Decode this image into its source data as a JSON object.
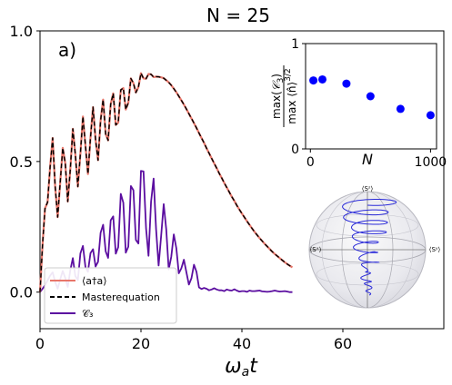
{
  "title": "N = 25",
  "panel_label": "a)",
  "colors": {
    "mean_n": "#e8766a",
    "master": "#000000",
    "c3": "#5b0ea0",
    "inset_points": "#0000ff",
    "trajectory": "#2a2ad8"
  },
  "chart_data": [
    {
      "type": "line",
      "xlabel": "ω_a t",
      "ylabel": "",
      "xlim": [
        0,
        80
      ],
      "ylim": [
        -0.14,
        1.0
      ],
      "x_ticks": [
        "0",
        "20",
        "40",
        "60"
      ],
      "y_ticks": [
        "0.0",
        "0.5",
        "1.0"
      ],
      "legend": {
        "placement": "bottom-left",
        "entries": [
          "⟨a†a⟩",
          "Masterequation",
          "𝒞₃"
        ]
      },
      "series": [
        {
          "name": "⟨a†a⟩",
          "style": "solid",
          "x": [
            0.0,
            0.5,
            1.0,
            1.5,
            2.0,
            2.5,
            3.0,
            3.5,
            4.0,
            4.5,
            5.0,
            5.5,
            6.0,
            6.5,
            7.0,
            7.5,
            8.0,
            8.5,
            9.0,
            9.5,
            10.0,
            10.5,
            11.0,
            11.5,
            12.0,
            12.5,
            13.0,
            13.5,
            14.0,
            14.5,
            15.0,
            15.5,
            16.0,
            16.5,
            17.0,
            17.5,
            18.0,
            18.5,
            19.0,
            19.5,
            20.0,
            20.5,
            21.0,
            21.5,
            22.0,
            22.5,
            23.0,
            23.5,
            24.0,
            24.5,
            25.0,
            25.5,
            26.0,
            26.5,
            27.0,
            27.5,
            28.0,
            28.5,
            29.0,
            29.5,
            30.0,
            30.5,
            31.0,
            31.5,
            32.0,
            32.5,
            33.0,
            33.5,
            34.0,
            34.5,
            35.0,
            35.5,
            36.0,
            36.5,
            37.0,
            37.5,
            38.0,
            38.5,
            39.0,
            39.5,
            40.0,
            40.5,
            41.0,
            41.5,
            42.0,
            42.5,
            43.0,
            43.5,
            44.0,
            44.5,
            45.0,
            45.5,
            46.0,
            46.5,
            47.0,
            47.5,
            48.0,
            48.5,
            49.0,
            49.5,
            50.0
          ],
          "y": [
            0.0,
            0.183,
            0.32,
            0.344,
            0.479,
            0.59,
            0.407,
            0.287,
            0.42,
            0.552,
            0.493,
            0.347,
            0.47,
            0.625,
            0.528,
            0.404,
            0.53,
            0.672,
            0.559,
            0.452,
            0.592,
            0.708,
            0.583,
            0.505,
            0.657,
            0.737,
            0.605,
            0.581,
            0.719,
            0.761,
            0.64,
            0.649,
            0.774,
            0.781,
            0.699,
            0.725,
            0.818,
            0.8,
            0.764,
            0.785,
            0.838,
            0.818,
            0.817,
            0.835,
            0.834,
            0.823,
            0.825,
            0.824,
            0.822,
            0.819,
            0.811,
            0.803,
            0.792,
            0.779,
            0.765,
            0.75,
            0.734,
            0.718,
            0.701,
            0.683,
            0.665,
            0.647,
            0.628,
            0.609,
            0.59,
            0.571,
            0.551,
            0.532,
            0.512,
            0.493,
            0.474,
            0.455,
            0.437,
            0.418,
            0.4,
            0.383,
            0.365,
            0.349,
            0.332,
            0.316,
            0.301,
            0.286,
            0.272,
            0.258,
            0.244,
            0.231,
            0.219,
            0.207,
            0.196,
            0.185,
            0.175,
            0.165,
            0.155,
            0.146,
            0.138,
            0.13,
            0.122,
            0.114,
            0.107,
            0.101,
            0.095
          ]
        },
        {
          "name": "Masterequation",
          "style": "dashed",
          "x": [
            0.0,
            0.5,
            1.0,
            1.5,
            2.0,
            2.5,
            3.0,
            3.5,
            4.0,
            4.5,
            5.0,
            5.5,
            6.0,
            6.5,
            7.0,
            7.5,
            8.0,
            8.5,
            9.0,
            9.5,
            10.0,
            10.5,
            11.0,
            11.5,
            12.0,
            12.5,
            13.0,
            13.5,
            14.0,
            14.5,
            15.0,
            15.5,
            16.0,
            16.5,
            17.0,
            17.5,
            18.0,
            18.5,
            19.0,
            19.5,
            20.0,
            20.5,
            21.0,
            21.5,
            22.0,
            22.5,
            23.0,
            23.5,
            24.0,
            24.5,
            25.0,
            25.5,
            26.0,
            26.5,
            27.0,
            27.5,
            28.0,
            28.5,
            29.0,
            29.5,
            30.0,
            30.5,
            31.0,
            31.5,
            32.0,
            32.5,
            33.0,
            33.5,
            34.0,
            34.5,
            35.0,
            35.5,
            36.0,
            36.5,
            37.0,
            37.5,
            38.0,
            38.5,
            39.0,
            39.5,
            40.0,
            40.5,
            41.0,
            41.5,
            42.0,
            42.5,
            43.0,
            43.5,
            44.0,
            44.5,
            45.0,
            45.5,
            46.0,
            46.5,
            47.0,
            47.5,
            48.0,
            48.5,
            49.0,
            49.5,
            50.0
          ],
          "y": [
            0.0,
            0.183,
            0.32,
            0.344,
            0.479,
            0.59,
            0.407,
            0.287,
            0.42,
            0.552,
            0.493,
            0.347,
            0.47,
            0.625,
            0.528,
            0.404,
            0.53,
            0.672,
            0.559,
            0.452,
            0.592,
            0.708,
            0.583,
            0.505,
            0.657,
            0.737,
            0.605,
            0.581,
            0.719,
            0.761,
            0.64,
            0.649,
            0.774,
            0.781,
            0.699,
            0.725,
            0.818,
            0.8,
            0.764,
            0.785,
            0.838,
            0.818,
            0.817,
            0.835,
            0.834,
            0.823,
            0.825,
            0.824,
            0.822,
            0.819,
            0.811,
            0.803,
            0.792,
            0.779,
            0.765,
            0.75,
            0.734,
            0.718,
            0.701,
            0.683,
            0.665,
            0.647,
            0.628,
            0.609,
            0.59,
            0.571,
            0.551,
            0.532,
            0.512,
            0.493,
            0.474,
            0.455,
            0.437,
            0.418,
            0.4,
            0.383,
            0.365,
            0.349,
            0.332,
            0.316,
            0.301,
            0.286,
            0.272,
            0.258,
            0.244,
            0.231,
            0.219,
            0.207,
            0.196,
            0.185,
            0.175,
            0.165,
            0.155,
            0.146,
            0.138,
            0.13,
            0.122,
            0.114,
            0.107,
            0.101,
            0.095
          ]
        },
        {
          "name": "𝒞₃",
          "style": "solid",
          "x": [
            0.0,
            0.5,
            1.0,
            1.5,
            2.0,
            2.5,
            3.0,
            3.5,
            4.0,
            4.5,
            5.0,
            5.5,
            6.0,
            6.5,
            7.0,
            7.5,
            8.0,
            8.5,
            9.0,
            9.5,
            10.0,
            10.5,
            11.0,
            11.5,
            12.0,
            12.5,
            13.0,
            13.5,
            14.0,
            14.5,
            15.0,
            15.5,
            16.0,
            16.5,
            17.0,
            17.5,
            18.0,
            18.5,
            19.0,
            19.5,
            20.0,
            20.5,
            21.0,
            21.5,
            22.0,
            22.5,
            23.0,
            23.5,
            24.0,
            24.5,
            25.0,
            25.5,
            26.0,
            26.5,
            27.0,
            27.5,
            28.0,
            28.5,
            29.0,
            29.5,
            30.0,
            30.5,
            31.0,
            31.5,
            32.0,
            32.5,
            33.0,
            33.5,
            34.0,
            34.5,
            35.0,
            35.5,
            36.0,
            36.5,
            37.0,
            37.5,
            38.0,
            38.5,
            39.0,
            39.5,
            40.0,
            40.5,
            41.0,
            41.5,
            42.0,
            42.5,
            43.0,
            43.5,
            44.0,
            44.5,
            45.0,
            45.5,
            46.0,
            46.5,
            47.0,
            47.5,
            48.0,
            48.5,
            49.0,
            49.5,
            50.0
          ],
          "y": [
            0.0,
            0.013,
            0.027,
            0.045,
            0.063,
            0.076,
            0.04,
            0.013,
            0.049,
            0.081,
            0.054,
            0.02,
            0.084,
            0.13,
            0.062,
            0.046,
            0.148,
            0.177,
            0.095,
            0.078,
            0.149,
            0.164,
            0.098,
            0.116,
            0.227,
            0.258,
            0.156,
            0.131,
            0.275,
            0.29,
            0.147,
            0.172,
            0.376,
            0.342,
            0.151,
            0.174,
            0.406,
            0.39,
            0.2,
            0.186,
            0.464,
            0.462,
            0.244,
            0.139,
            0.346,
            0.435,
            0.242,
            0.102,
            0.216,
            0.337,
            0.24,
            0.087,
            0.135,
            0.221,
            0.168,
            0.072,
            0.091,
            0.124,
            0.077,
            0.029,
            0.053,
            0.105,
            0.077,
            0.018,
            0.012,
            0.016,
            0.013,
            0.007,
            0.01,
            0.015,
            0.01,
            0.007,
            0.007,
            0.004,
            0.01,
            0.007,
            0.006,
            0.011,
            0.006,
            0.002,
            0.004,
            0.004,
            0.001,
            0.006,
            0.004,
            0.004,
            0.005,
            0.006,
            0.003,
            0.002,
            0.001,
            0.002,
            0.004,
            0.006,
            0.004,
            0.002,
            0.003,
            0.004,
            0.002,
            0.0,
            0.0
          ]
        }
      ]
    },
    {
      "type": "scatter",
      "xlabel": "N",
      "ylabel": "max(𝒞₃) / max⟨n̂⟩^{3/2}",
      "xlim": [
        -40,
        1050
      ],
      "ylim": [
        0,
        1
      ],
      "x_ticks": [
        "0",
        "1000"
      ],
      "y_ticks": [
        "0",
        "1"
      ],
      "points": {
        "x": [
          25,
          100,
          300,
          500,
          750,
          1000
        ],
        "y": [
          0.65,
          0.66,
          0.62,
          0.5,
          0.38,
          0.32
        ]
      }
    }
  ],
  "bloch": {
    "labels": {
      "top": "⟨Sᶻ⟩",
      "left": "⟨Sˣ⟩",
      "right": "⟨Sʸ⟩"
    }
  }
}
